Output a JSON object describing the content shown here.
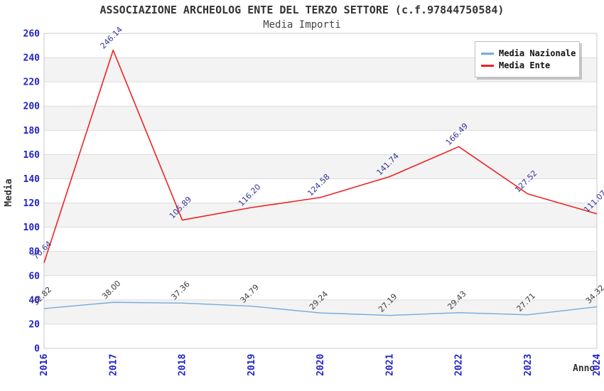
{
  "header": {
    "title": "ASSOCIAZIONE ARCHEOLOG ENTE DEL TERZO SETTORE (c.f.97844750584)",
    "subtitle": "Media Importi"
  },
  "axes": {
    "y_title": "Media",
    "x_title": "Anno",
    "y_ticks": [
      "0",
      "20",
      "40",
      "60",
      "80",
      "100",
      "120",
      "140",
      "160",
      "180",
      "200",
      "220",
      "240",
      "260"
    ],
    "x_ticks": [
      "2016",
      "2017",
      "2018",
      "2019",
      "2020",
      "2021",
      "2022",
      "2023",
      "2024"
    ],
    "tick_color": "#2222cc"
  },
  "legend": {
    "items": [
      {
        "label": "Media Nazionale",
        "color": "#74aadc"
      },
      {
        "label": "Media Ente",
        "color": "#ee2222"
      }
    ]
  },
  "chart_data": {
    "type": "line",
    "title": "ASSOCIAZIONE ARCHEOLOG ENTE DEL TERZO SETTORE (c.f.97844750584)",
    "subtitle": "Media Importi",
    "xlabel": "Anno",
    "ylabel": "Media",
    "x": [
      2016,
      2017,
      2018,
      2019,
      2020,
      2021,
      2022,
      2023,
      2024
    ],
    "series": [
      {
        "name": "Media Nazionale",
        "color": "#74aadc",
        "label_color": "#3d3d3d",
        "line_width": 1.4,
        "values": [
          32.82,
          38.0,
          37.36,
          34.79,
          29.24,
          27.19,
          29.43,
          27.71,
          34.32
        ]
      },
      {
        "name": "Media Ente",
        "color": "#ee2222",
        "label_color": "#333399",
        "line_width": 1.6,
        "values": [
          70.64,
          246.14,
          105.89,
          116.2,
          124.58,
          141.74,
          166.49,
          127.52,
          111.07
        ]
      }
    ],
    "ylim": [
      0,
      260
    ],
    "y_tick_step": 20,
    "grid": "horizontal",
    "band_color": "#f3f3f3",
    "grid_color": "#dcdcdc",
    "border_color": "#c8c8c8",
    "legend_position": "top-right"
  }
}
